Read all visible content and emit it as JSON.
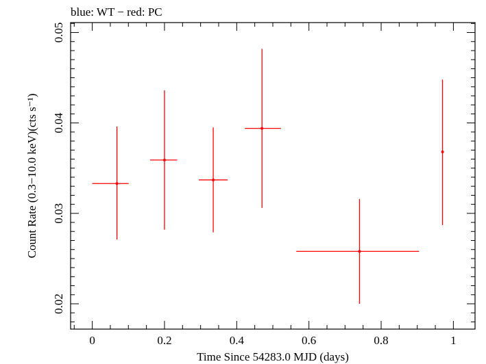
{
  "chart_data": {
    "type": "scatter",
    "title": "blue: WT − red: PC",
    "xlabel": "Time Since 54283.0 MJD (days)",
    "ylabel": "Count Rate (0.3−10.0 keV)(cts s⁻¹)",
    "xlim": [
      -0.06,
      1.06
    ],
    "ylim": [
      0.0172,
      0.0511
    ],
    "xticks": [
      0,
      0.2,
      0.4,
      0.6,
      0.8,
      1
    ],
    "xtick_labels": [
      "0",
      "0.2",
      "0.4",
      "0.6",
      "0.8",
      "1"
    ],
    "yticks": [
      0.02,
      0.03,
      0.04,
      0.05
    ],
    "ytick_labels": [
      "0.02",
      "0.03",
      "0.04",
      "0.05"
    ],
    "grid": false,
    "series": [
      {
        "color": "#ff0000",
        "points": [
          {
            "x": 0.0683,
            "xerr_lo": 0.0683,
            "xerr_hi": 0.0325,
            "y": 0.0333,
            "yerr_lo": 0.0062,
            "yerr_hi": 0.0063
          },
          {
            "x": 0.2,
            "xerr_lo": 0.04,
            "xerr_hi": 0.035,
            "y": 0.0359,
            "yerr_lo": 0.0077,
            "yerr_hi": 0.0077
          },
          {
            "x": 0.335,
            "xerr_lo": 0.04,
            "xerr_hi": 0.04,
            "y": 0.0337,
            "yerr_lo": 0.0058,
            "yerr_hi": 0.0058
          },
          {
            "x": 0.47,
            "xerr_lo": 0.0475,
            "xerr_hi": 0.0525,
            "y": 0.0394,
            "yerr_lo": 0.0088,
            "yerr_hi": 0.0088
          },
          {
            "x": 0.74,
            "xerr_lo": 0.175,
            "xerr_hi": 0.165,
            "y": 0.0258,
            "yerr_lo": 0.0058,
            "yerr_hi": 0.0058
          },
          {
            "x": 0.97,
            "xerr_lo": 0.0,
            "xerr_hi": 0.0,
            "y": 0.0368,
            "yerr_lo": 0.0081,
            "yerr_hi": 0.008
          }
        ]
      }
    ]
  }
}
